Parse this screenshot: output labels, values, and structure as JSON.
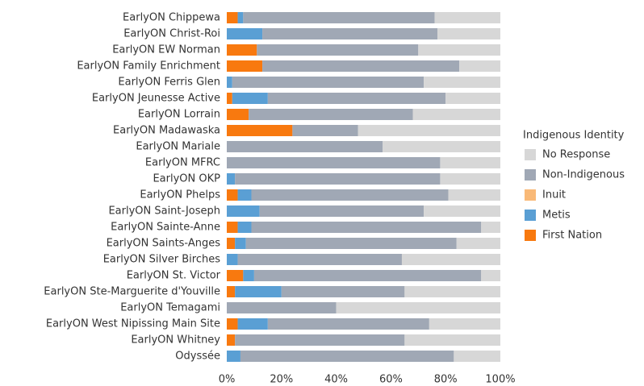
{
  "chart_data": {
    "type": "stacked_bar_horizontal",
    "categories": [
      "EarlyON Chippewa",
      "EarlyON Christ-Roi",
      "EarlyON EW Norman",
      "EarlyON Family Enrichment",
      "EarlyON Ferris Glen",
      "EarlyON Jeunesse Active",
      "EarlyON Lorrain",
      "EarlyON Madawaska",
      "EarlyON Mariale",
      "EarlyON MFRC",
      "EarlyON OKP",
      "EarlyON Phelps",
      "EarlyON Saint-Joseph",
      "EarlyON Sainte-Anne",
      "EarlyON Saints-Anges",
      "EarlyON Silver Birches",
      "EarlyON St. Victor",
      "EarlyON Ste-Marguerite d'Youville",
      "EarlyON Temagami",
      "EarlyON West Nipissing Main Site",
      "EarlyON Whitney",
      "Odyssée"
    ],
    "series": [
      {
        "name": "First Nation",
        "color": "#f8790f",
        "values": [
          4,
          0,
          11,
          13,
          0,
          2,
          8,
          24,
          0,
          0,
          0,
          4,
          0,
          4,
          3,
          0,
          6,
          3,
          0,
          4,
          3,
          0
        ]
      },
      {
        "name": "Inuit",
        "color": "#f9b977",
        "values": [
          0,
          0,
          0,
          0,
          0,
          0,
          0,
          0,
          0,
          0,
          0,
          0,
          0,
          0,
          0,
          0,
          0,
          0,
          0,
          0,
          0,
          0
        ]
      },
      {
        "name": "Metis",
        "color": "#5a9fd4",
        "values": [
          2,
          13,
          0,
          0,
          2,
          13,
          0,
          0,
          0,
          0,
          3,
          5,
          12,
          5,
          4,
          4,
          4,
          17,
          0,
          11,
          0,
          5
        ]
      },
      {
        "name": "Non-Indigenous",
        "color": "#a0a8b5",
        "values": [
          70,
          64,
          59,
          72,
          70,
          65,
          60,
          24,
          57,
          78,
          75,
          72,
          60,
          84,
          77,
          60,
          83,
          45,
          40,
          59,
          62,
          78
        ]
      },
      {
        "name": "No Response",
        "color": "#d7d7d7",
        "values": [
          24,
          23,
          30,
          15,
          28,
          20,
          32,
          52,
          43,
          22,
          22,
          19,
          28,
          7,
          16,
          36,
          7,
          35,
          60,
          26,
          35,
          17
        ]
      }
    ],
    "legend_title": "Indigenous Identity",
    "legend_order": [
      "No Response",
      "Non-Indigenous",
      "Inuit",
      "Metis",
      "First Nation"
    ],
    "xlim": [
      0,
      100
    ],
    "xticks": [
      {
        "value": 0,
        "label": "0%"
      },
      {
        "value": 20,
        "label": "20%"
      },
      {
        "value": 40,
        "label": "40%"
      },
      {
        "value": 60,
        "label": "60%"
      },
      {
        "value": 80,
        "label": "80%"
      },
      {
        "value": 100,
        "label": "100%"
      }
    ],
    "legend_position": "right"
  }
}
